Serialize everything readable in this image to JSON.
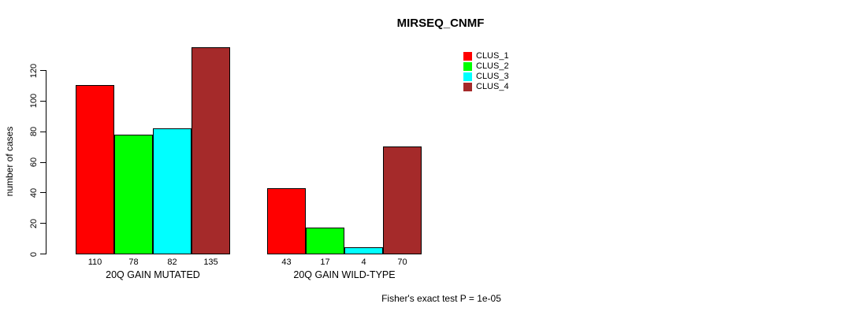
{
  "chart_data": {
    "type": "bar",
    "title": "MIRSEQ_CNMF",
    "ylabel": "number of cases",
    "xlabel": "",
    "categories": [
      "20Q GAIN MUTATED",
      "20Q GAIN WILD-TYPE"
    ],
    "series": [
      {
        "name": "CLUS_1",
        "color": "#ff0000",
        "values": [
          110,
          43
        ]
      },
      {
        "name": "CLUS_2",
        "color": "#00ff00",
        "values": [
          78,
          17
        ]
      },
      {
        "name": "CLUS_3",
        "color": "#00ffff",
        "values": [
          82,
          4
        ]
      },
      {
        "name": "CLUS_4",
        "color": "#a52a2a",
        "values": [
          135,
          70
        ]
      }
    ],
    "yticks": [
      0,
      20,
      40,
      60,
      80,
      100,
      120
    ],
    "ylim": [
      0,
      120
    ],
    "grid": false,
    "bar_value_labels_shown": true,
    "legend_position": "top-right",
    "annotation": "Fisher's exact test P = 1e-05"
  }
}
